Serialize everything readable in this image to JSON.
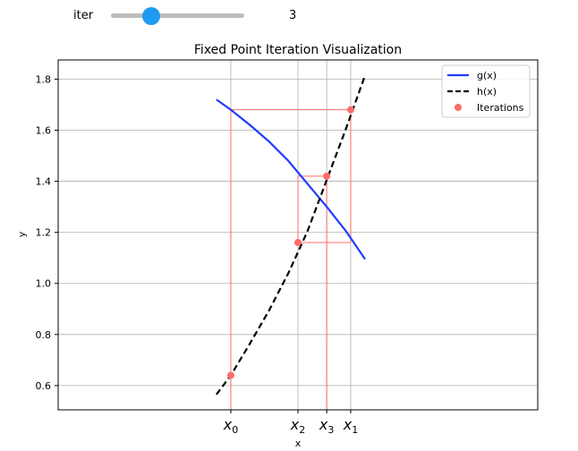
{
  "slider": {
    "label": "iter",
    "value": 3,
    "min": 0,
    "max": 10
  },
  "chart_data": {
    "type": "line",
    "title": "Fixed Point Iteration Visualization",
    "xlabel": "x",
    "ylabel": "y",
    "xlim": [
      0.0,
      1.0
    ],
    "ylim": [
      0.505,
      1.875
    ],
    "grid": true,
    "legend_position": "top-right",
    "yticks": [
      0.6,
      0.8,
      1.0,
      1.2,
      1.4,
      1.6,
      1.8
    ],
    "xtick_labels": [
      {
        "base": "x",
        "sub": "0",
        "value": 0.36
      },
      {
        "base": "x",
        "sub": "2",
        "value": 0.5
      },
      {
        "base": "x",
        "sub": "3",
        "value": 0.56
      },
      {
        "base": "x",
        "sub": "1",
        "value": 0.61
      }
    ],
    "series": [
      {
        "name": "g(x)",
        "style": "solid",
        "color": "#1f3cff",
        "x": [
          0.33,
          0.36,
          0.4,
          0.44,
          0.48,
          0.52,
          0.56,
          0.6,
          0.64
        ],
        "y": [
          1.72,
          1.68,
          1.62,
          1.555,
          1.48,
          1.39,
          1.3,
          1.205,
          1.095
        ]
      },
      {
        "name": "h(x)",
        "style": "dashed",
        "color": "#000000",
        "x": [
          0.33,
          0.36,
          0.4,
          0.44,
          0.48,
          0.52,
          0.56,
          0.6,
          0.64
        ],
        "y": [
          0.565,
          0.64,
          0.765,
          0.895,
          1.04,
          1.205,
          1.405,
          1.605,
          1.815
        ]
      },
      {
        "name": "Iterations",
        "style": "markers",
        "color": "#ff6b6b",
        "x": [
          0.36,
          0.61,
          0.5,
          0.56
        ],
        "y": [
          0.64,
          1.68,
          1.16,
          1.42
        ]
      }
    ],
    "cobweb_path": {
      "color": "#ff6b6b",
      "x": [
        0.36,
        0.36,
        0.61,
        0.61,
        0.5,
        0.5,
        0.56,
        0.56
      ],
      "y": [
        0.505,
        1.68,
        1.68,
        1.16,
        1.16,
        1.42,
        1.42,
        0.505
      ]
    },
    "reference_lines": {
      "x": [
        0.36,
        0.5,
        0.56,
        0.61
      ]
    }
  }
}
